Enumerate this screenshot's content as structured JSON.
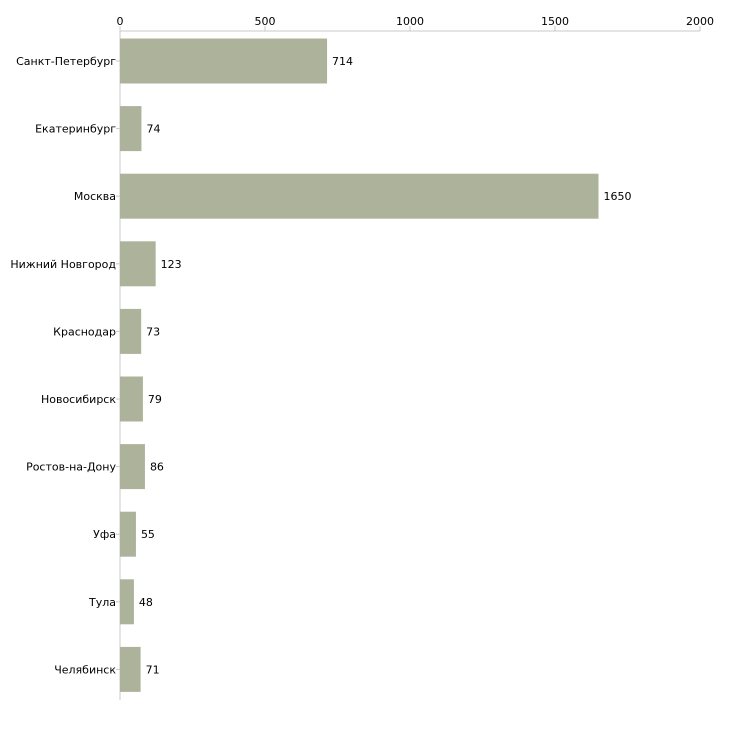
{
  "chart_data": {
    "type": "bar",
    "orientation": "horizontal",
    "title": "",
    "xlabel": "",
    "ylabel": "",
    "xlim": [
      0,
      2000
    ],
    "ticks": [
      0,
      500,
      1000,
      1500,
      2000
    ],
    "tick_labels": [
      "0",
      "500",
      "1000",
      "1500",
      "2000"
    ],
    "axis_position": "top",
    "grid": false,
    "bar_color": "#adb39a",
    "categories": [
      "Санкт-Петербург",
      "Екатеринбург",
      "Москва",
      "Нижний Новгород",
      "Краснодар",
      "Новосибирск",
      "Ростов-на-Дону",
      "Уфа",
      "Тула",
      "Челябинск"
    ],
    "values": [
      714,
      74,
      1650,
      123,
      73,
      79,
      86,
      55,
      48,
      71
    ],
    "value_labels": [
      "714",
      "74",
      "1650",
      "123",
      "73",
      "79",
      "86",
      "55",
      "48",
      "71"
    ]
  }
}
